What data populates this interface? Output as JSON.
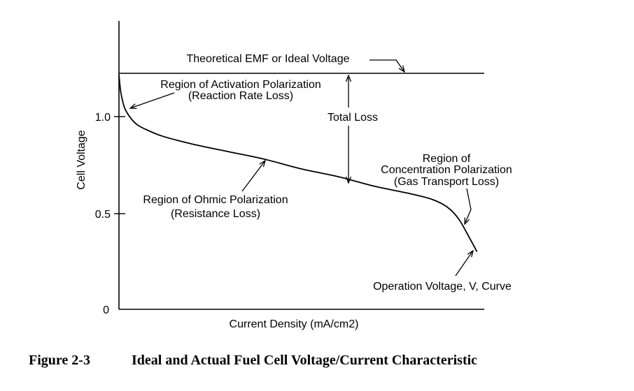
{
  "figure": {
    "number": "Figure 2-3",
    "title": "Ideal and Actual Fuel Cell Voltage/Current Characteristic"
  },
  "chart_data": {
    "type": "line",
    "xlabel": "Current Density (mA/cm2)",
    "ylabel": "Cell Voltage",
    "y_ticks": [
      {
        "value": 0,
        "label": "0"
      },
      {
        "value": 0.5,
        "label": "0.5"
      },
      {
        "value": 1.0,
        "label": "1.0"
      }
    ],
    "ylim": [
      0,
      1.5
    ],
    "xlim": [
      0,
      1
    ],
    "ideal_voltage": 1.22,
    "series": [
      {
        "name": "Operation Voltage, V, Curve",
        "x": [
          0.0,
          0.005,
          0.015,
          0.03,
          0.05,
          0.08,
          0.12,
          0.2,
          0.3,
          0.4,
          0.5,
          0.6,
          0.7,
          0.8,
          0.86,
          0.9,
          0.93,
          0.96,
          0.98
        ],
        "y": [
          1.22,
          1.13,
          1.05,
          1.0,
          0.96,
          0.93,
          0.9,
          0.86,
          0.82,
          0.78,
          0.73,
          0.69,
          0.64,
          0.6,
          0.57,
          0.53,
          0.47,
          0.37,
          0.3
        ]
      }
    ],
    "annotations": {
      "ideal": "Theoretical EMF or Ideal Voltage",
      "activation_1": "Region of Activation Polarization",
      "activation_2": "(Reaction Rate Loss)",
      "total_loss": "Total Loss",
      "concentration_1": "Region of",
      "concentration_2": "Concentration Polarization",
      "concentration_3": "(Gas Transport Loss)",
      "ohmic_1": "Region of Ohmic Polarization",
      "ohmic_2": "(Resistance Loss)",
      "operation": "Operation Voltage, V, Curve"
    }
  }
}
